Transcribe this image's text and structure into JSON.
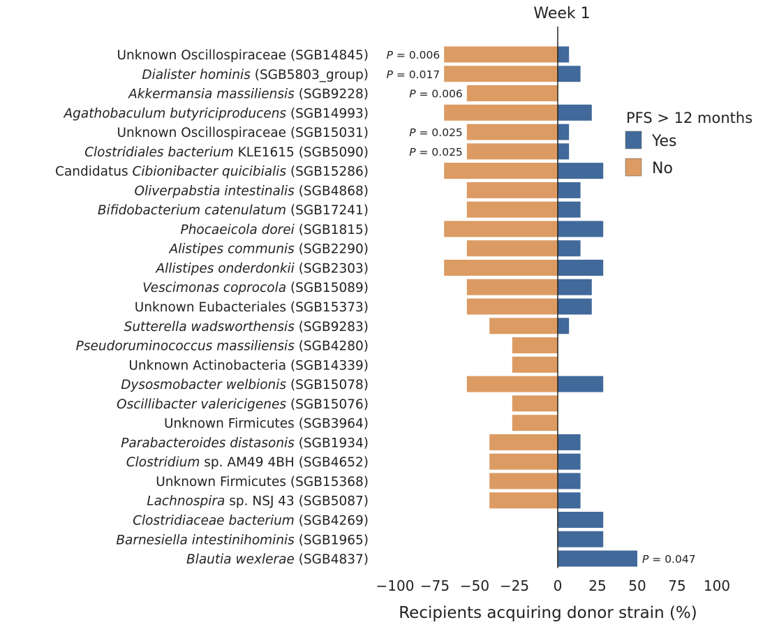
{
  "chart_data": {
    "type": "bar",
    "orientation": "horizontal-diverging",
    "title": "Week 1",
    "xlabel": "Recipients acquiring donor strain (%)",
    "xlim": [
      -100,
      100
    ],
    "xticks": [
      "−100",
      "−75",
      "−50",
      "−25",
      "0",
      "25",
      "50",
      "75",
      "100"
    ],
    "xtick_values": [
      -100,
      -75,
      -50,
      -25,
      0,
      25,
      50,
      75,
      100
    ],
    "grid": false,
    "legend": {
      "title": "PFS > 12 months",
      "placement": "right",
      "entries": [
        {
          "name": "Yes",
          "color": "#41699a"
        },
        {
          "name": "No",
          "color": "#dc9b63"
        }
      ]
    },
    "categories": [
      {
        "segments": [
          [
            "Unknown Oscillospiraceae (SGB14845)",
            false
          ]
        ],
        "p": "0.006",
        "p_side": "no"
      },
      {
        "segments": [
          [
            "Dialister hominis",
            true
          ],
          [
            " (SGB5803_group)",
            false
          ]
        ],
        "p": "0.017",
        "p_side": "no"
      },
      {
        "segments": [
          [
            "Akkermansia massiliensis",
            true
          ],
          [
            " (SGB9228)",
            false
          ]
        ],
        "p": "0.006",
        "p_side": "no"
      },
      {
        "segments": [
          [
            "Agathobaculum butyriciproducens",
            true
          ],
          [
            " (SGB14993)",
            false
          ]
        ]
      },
      {
        "segments": [
          [
            "Unknown Oscillospiraceae (SGB15031)",
            false
          ]
        ],
        "p": "0.025",
        "p_side": "no"
      },
      {
        "segments": [
          [
            "Clostridiales bacterium",
            true
          ],
          [
            " KLE1615 (SGB5090)",
            false
          ]
        ],
        "p": "0.025",
        "p_side": "no"
      },
      {
        "segments": [
          [
            "Candidatus ",
            false
          ],
          [
            "Cibionibacter quicibialis",
            true
          ],
          [
            " (SGB15286)",
            false
          ]
        ]
      },
      {
        "segments": [
          [
            "Oliverpabstia intestinalis",
            true
          ],
          [
            " (SGB4868)",
            false
          ]
        ]
      },
      {
        "segments": [
          [
            "Bifidobacterium catenulatum",
            true
          ],
          [
            " (SGB17241)",
            false
          ]
        ]
      },
      {
        "segments": [
          [
            "Phocaeicola dorei",
            true
          ],
          [
            " (SGB1815)",
            false
          ]
        ]
      },
      {
        "segments": [
          [
            "Alistipes communis",
            true
          ],
          [
            " (SGB2290)",
            false
          ]
        ]
      },
      {
        "segments": [
          [
            "Allistipes onderdonkii",
            true
          ],
          [
            " (SGB2303)",
            false
          ]
        ]
      },
      {
        "segments": [
          [
            "Vescimonas coprocola",
            true
          ],
          [
            " (SGB15089)",
            false
          ]
        ]
      },
      {
        "segments": [
          [
            "Unknown Eubacteriales (SGB15373)",
            false
          ]
        ]
      },
      {
        "segments": [
          [
            "Sutterella wadsworthensis",
            true
          ],
          [
            " (SGB9283)",
            false
          ]
        ]
      },
      {
        "segments": [
          [
            "Pseudoruminococcus massiliensis",
            true
          ],
          [
            " (SGB4280)",
            false
          ]
        ]
      },
      {
        "segments": [
          [
            "Unknown Actinobacteria (SGB14339)",
            false
          ]
        ]
      },
      {
        "segments": [
          [
            "Dysosmobacter welbionis",
            true
          ],
          [
            " (SGB15078)",
            false
          ]
        ]
      },
      {
        "segments": [
          [
            "Oscillibacter valericigenes",
            true
          ],
          [
            " (SGB15076)",
            false
          ]
        ]
      },
      {
        "segments": [
          [
            "Unknown Firmicutes (SGB3964)",
            false
          ]
        ]
      },
      {
        "segments": [
          [
            "Parabacteroides distasonis",
            true
          ],
          [
            " (SGB1934)",
            false
          ]
        ]
      },
      {
        "segments": [
          [
            "Clostridium",
            true
          ],
          [
            " sp. AM49 4BH (SGB4652)",
            false
          ]
        ]
      },
      {
        "segments": [
          [
            "Unknown Firmicutes (SGB15368)",
            false
          ]
        ]
      },
      {
        "segments": [
          [
            "Lachnospira",
            true
          ],
          [
            " sp. NSJ 43 (SGB5087)",
            false
          ]
        ]
      },
      {
        "segments": [
          [
            "Clostridiaceae bacterium",
            true
          ],
          [
            " (SGB4269)",
            false
          ]
        ]
      },
      {
        "segments": [
          [
            "Barnesiella intestinihominis",
            true
          ],
          [
            " (SGB1965)",
            false
          ]
        ]
      },
      {
        "segments": [
          [
            "Blautia wexlerae",
            true
          ],
          [
            " (SGB4837)",
            false
          ]
        ],
        "p": "0.047",
        "p_side": "yes"
      }
    ],
    "p_prefix": "P",
    "series": [
      {
        "name": "No",
        "color": "#dc9b63",
        "values": [
          -71.4,
          -71.4,
          -57.1,
          -71.4,
          -57.1,
          -57.1,
          -71.4,
          -57.1,
          -57.1,
          -71.4,
          -57.1,
          -71.4,
          -57.1,
          -57.1,
          -42.9,
          -28.6,
          -28.6,
          -57.1,
          -28.6,
          -28.6,
          -42.9,
          -42.9,
          -42.9,
          -42.9,
          0,
          0,
          0
        ]
      },
      {
        "name": "Yes",
        "color": "#41699a",
        "values": [
          7.1,
          14.3,
          0,
          21.4,
          7.1,
          7.1,
          28.6,
          14.3,
          14.3,
          28.6,
          14.3,
          28.6,
          21.4,
          21.4,
          7.1,
          0,
          0,
          28.6,
          0,
          0,
          14.3,
          14.3,
          14.3,
          14.3,
          28.6,
          28.6,
          50
        ]
      }
    ]
  }
}
